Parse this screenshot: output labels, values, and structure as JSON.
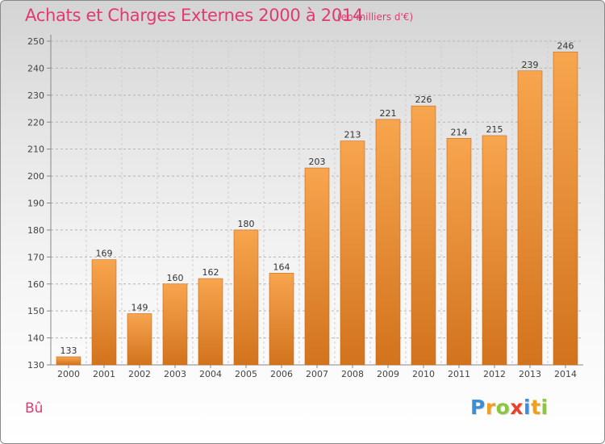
{
  "header": {
    "title": "Achats et Charges Externes 2000 à 2014",
    "subtitle": "(en milliers d'€)"
  },
  "footer": {
    "commune": "Bû",
    "logo_letters": [
      {
        "char": "P",
        "color": "#3a8fd6"
      },
      {
        "char": "r",
        "color": "#f0a01e"
      },
      {
        "char": "o",
        "color": "#8cc63f"
      },
      {
        "char": "x",
        "color": "#e8412c"
      },
      {
        "char": "i",
        "color": "#3a8fd6"
      },
      {
        "char": "t",
        "color": "#f0a01e"
      },
      {
        "char": "i",
        "color": "#8cc63f"
      }
    ]
  },
  "colors": {
    "accent": "#e03a72",
    "bar_top": "#f7a54e",
    "bar_bottom": "#d2731d",
    "grid": "#b4b4b4"
  },
  "chart_data": {
    "type": "bar",
    "title": "Achats et Charges Externes 2000 à 2014",
    "subtitle": "(en milliers d'€)",
    "xlabel": "",
    "ylabel": "",
    "categories": [
      "2000",
      "2001",
      "2002",
      "2003",
      "2004",
      "2005",
      "2006",
      "2007",
      "2008",
      "2009",
      "2010",
      "2011",
      "2012",
      "2013",
      "2014"
    ],
    "values": [
      133,
      169,
      149,
      160,
      162,
      180,
      164,
      203,
      213,
      221,
      226,
      214,
      215,
      239,
      246
    ],
    "ylim": [
      130,
      250
    ],
    "yticks": [
      130,
      140,
      150,
      160,
      170,
      180,
      190,
      200,
      210,
      220,
      230,
      240,
      250
    ],
    "grid": "horizontal dashed",
    "legend": "none"
  }
}
